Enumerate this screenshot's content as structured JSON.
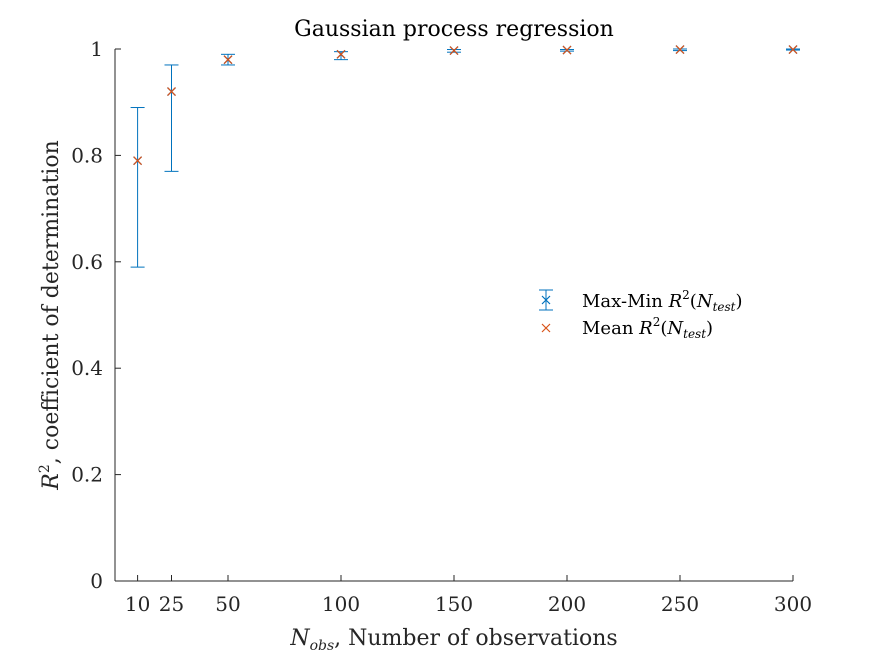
{
  "chart_data": {
    "type": "scatter",
    "title": "Gaussian process regression",
    "xlabel": {
      "symbol": "N",
      "subscript": "obs",
      "text": ", Number of observations"
    },
    "ylabel": {
      "symbol": "R",
      "superscript": "2",
      "text": ", coefficient of determination"
    },
    "xlim": [
      0,
      300
    ],
    "ylim": [
      0,
      1
    ],
    "x_ticks": [
      10,
      25,
      50,
      100,
      150,
      200,
      250,
      300
    ],
    "y_ticks": [
      0,
      0.2,
      0.4,
      0.6,
      0.8,
      1
    ],
    "x_tick_labels": [
      "10",
      "25",
      "50",
      "100",
      "150",
      "200",
      "250",
      "300"
    ],
    "y_tick_labels": [
      "0",
      "0.2",
      "0.4",
      "0.6",
      "0.8",
      "1"
    ],
    "grid": false,
    "legend_position": "center-right",
    "x": [
      10,
      25,
      50,
      100,
      150,
      200,
      250,
      300
    ],
    "series": [
      {
        "name": "Max-Min R2(Ntest)",
        "legend": {
          "prefix": "Max-Min ",
          "symbol": "R",
          "sup": "2",
          "sub": "test"
        },
        "kind": "errorbar",
        "color": "#0072BD",
        "center": [
          0.79,
          0.92,
          0.98,
          0.99,
          0.997,
          0.998,
          0.999,
          0.999
        ],
        "min": [
          0.59,
          0.77,
          0.97,
          0.98,
          0.994,
          0.996,
          0.997,
          0.998
        ],
        "max": [
          0.89,
          0.97,
          0.99,
          0.995,
          0.999,
          0.999,
          1.0,
          1.0
        ]
      },
      {
        "name": "Mean R2(Ntest)",
        "legend": {
          "prefix": "Mean ",
          "symbol": "R",
          "sup": "2",
          "sub": "test"
        },
        "kind": "marker",
        "marker": "x",
        "color": "#D95319",
        "values": [
          0.79,
          0.92,
          0.98,
          0.99,
          0.997,
          0.998,
          0.999,
          0.999
        ]
      }
    ]
  }
}
